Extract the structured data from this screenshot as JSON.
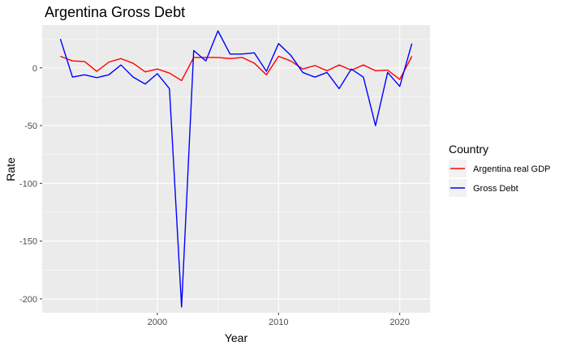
{
  "chart_data": {
    "type": "line",
    "title": "Argentina Gross Debt",
    "xlabel": "Year",
    "ylabel": "Rate",
    "xlim": [
      1990.5,
      2022.5
    ],
    "ylim": [
      -212,
      37
    ],
    "x_ticks": [
      2000,
      2010,
      2020
    ],
    "y_ticks": [
      0,
      -50,
      -100,
      -150,
      -200
    ],
    "grid": true,
    "legend": {
      "title": "Country",
      "placement": "right"
    },
    "x": [
      1992,
      1993,
      1994,
      1995,
      1996,
      1997,
      1998,
      1999,
      2000,
      2001,
      2002,
      2003,
      2004,
      2005,
      2006,
      2007,
      2008,
      2009,
      2010,
      2011,
      2012,
      2013,
      2014,
      2015,
      2016,
      2017,
      2018,
      2019,
      2020,
      2021
    ],
    "series": [
      {
        "name": "Argentina real GDP",
        "color": "#ff0000",
        "values": [
          10,
          6,
          5.5,
          -3,
          5,
          8,
          4,
          -3.5,
          -1,
          -4.5,
          -11,
          9,
          9,
          9,
          8,
          9,
          4,
          -6,
          10,
          6,
          -1,
          2,
          -2.5,
          2.5,
          -2,
          2.5,
          -2.5,
          -2,
          -10,
          10
        ]
      },
      {
        "name": "Gross Debt",
        "color": "#0000ff",
        "values": [
          25,
          -8,
          -6,
          -8.5,
          -6,
          2.5,
          -8,
          -14,
          -5,
          -18,
          -207,
          15,
          6,
          32,
          12,
          12,
          13,
          -3,
          21,
          11,
          -4,
          -8,
          -4,
          -18,
          -1,
          -8,
          -50,
          -4,
          -16,
          21
        ]
      }
    ]
  }
}
